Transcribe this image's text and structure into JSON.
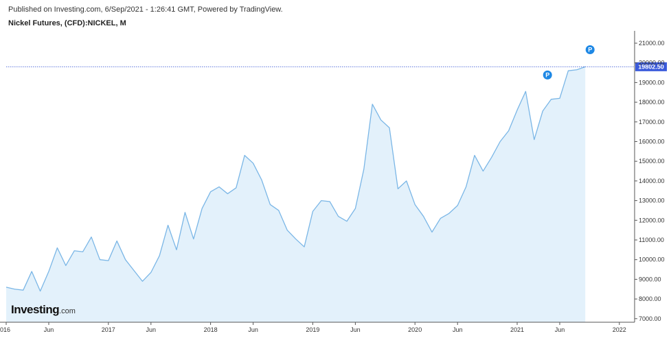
{
  "header": {
    "published": "Published on Investing.com, 6/Sep/2021 - 1:26:41 GMT, Powered by TradingView.",
    "title": "Nickel Futures, (CFD):NICKEL, M"
  },
  "logo": {
    "brand": "Investing",
    "suffix": ".com"
  },
  "colors": {
    "line": "#7ab6e6",
    "area": "#e3f1fb",
    "price_line": "#2f4fd1",
    "price_tag": "#3b5bdb",
    "marker": "#1e88e5",
    "axis_line": "#555555"
  },
  "chart_data": {
    "type": "area",
    "title": "Nickel Futures, (CFD):NICKEL, M",
    "ylim": [
      7000,
      21500
    ],
    "y_ticks": [
      "21000.00",
      "20000.00",
      "19000.00",
      "18000.00",
      "17000.00",
      "16000.00",
      "15000.00",
      "14000.00",
      "13000.00",
      "12000.00",
      "11000.00",
      "10000.00",
      "9000.00",
      "8000.00",
      "7000.00"
    ],
    "x_labels": [
      {
        "label": "016",
        "x": 0
      },
      {
        "label": "Jun",
        "x": 5
      },
      {
        "label": "2017",
        "x": 12
      },
      {
        "label": "Jun",
        "x": 17
      },
      {
        "label": "2018",
        "x": 24
      },
      {
        "label": "Jun",
        "x": 29
      },
      {
        "label": "2019",
        "x": 36
      },
      {
        "label": "Jun",
        "x": 41
      },
      {
        "label": "2020",
        "x": 48
      },
      {
        "label": "Jun",
        "x": 53
      },
      {
        "label": "2021",
        "x": 60
      },
      {
        "label": "Jun",
        "x": 65
      },
      {
        "label": "2022",
        "x": 72
      }
    ],
    "x_range": [
      0,
      73.5
    ],
    "values": [
      8600,
      8500,
      8450,
      9400,
      8400,
      9400,
      10600,
      9700,
      10450,
      10400,
      11150,
      10000,
      9950,
      10950,
      10000,
      9450,
      8900,
      9350,
      10200,
      11750,
      10500,
      12400,
      11050,
      12600,
      13450,
      13700,
      13350,
      13650,
      15300,
      14900,
      14050,
      12800,
      12500,
      11500,
      11050,
      10650,
      12450,
      13000,
      12950,
      12200,
      11950,
      12600,
      14600,
      17900,
      17100,
      16700,
      13600,
      14000,
      12800,
      12200,
      11400,
      12100,
      12350,
      12750,
      13700,
      15300,
      14500,
      15200,
      16000,
      16550,
      17600,
      18550,
      16100,
      17550,
      18150,
      18200,
      19600,
      19650,
      19802.5
    ],
    "last_price": "19802.50",
    "markers": [
      {
        "label": "P",
        "index": 63,
        "value": 19802.5
      },
      {
        "label": "P",
        "index": 68,
        "value": 20250
      }
    ]
  }
}
